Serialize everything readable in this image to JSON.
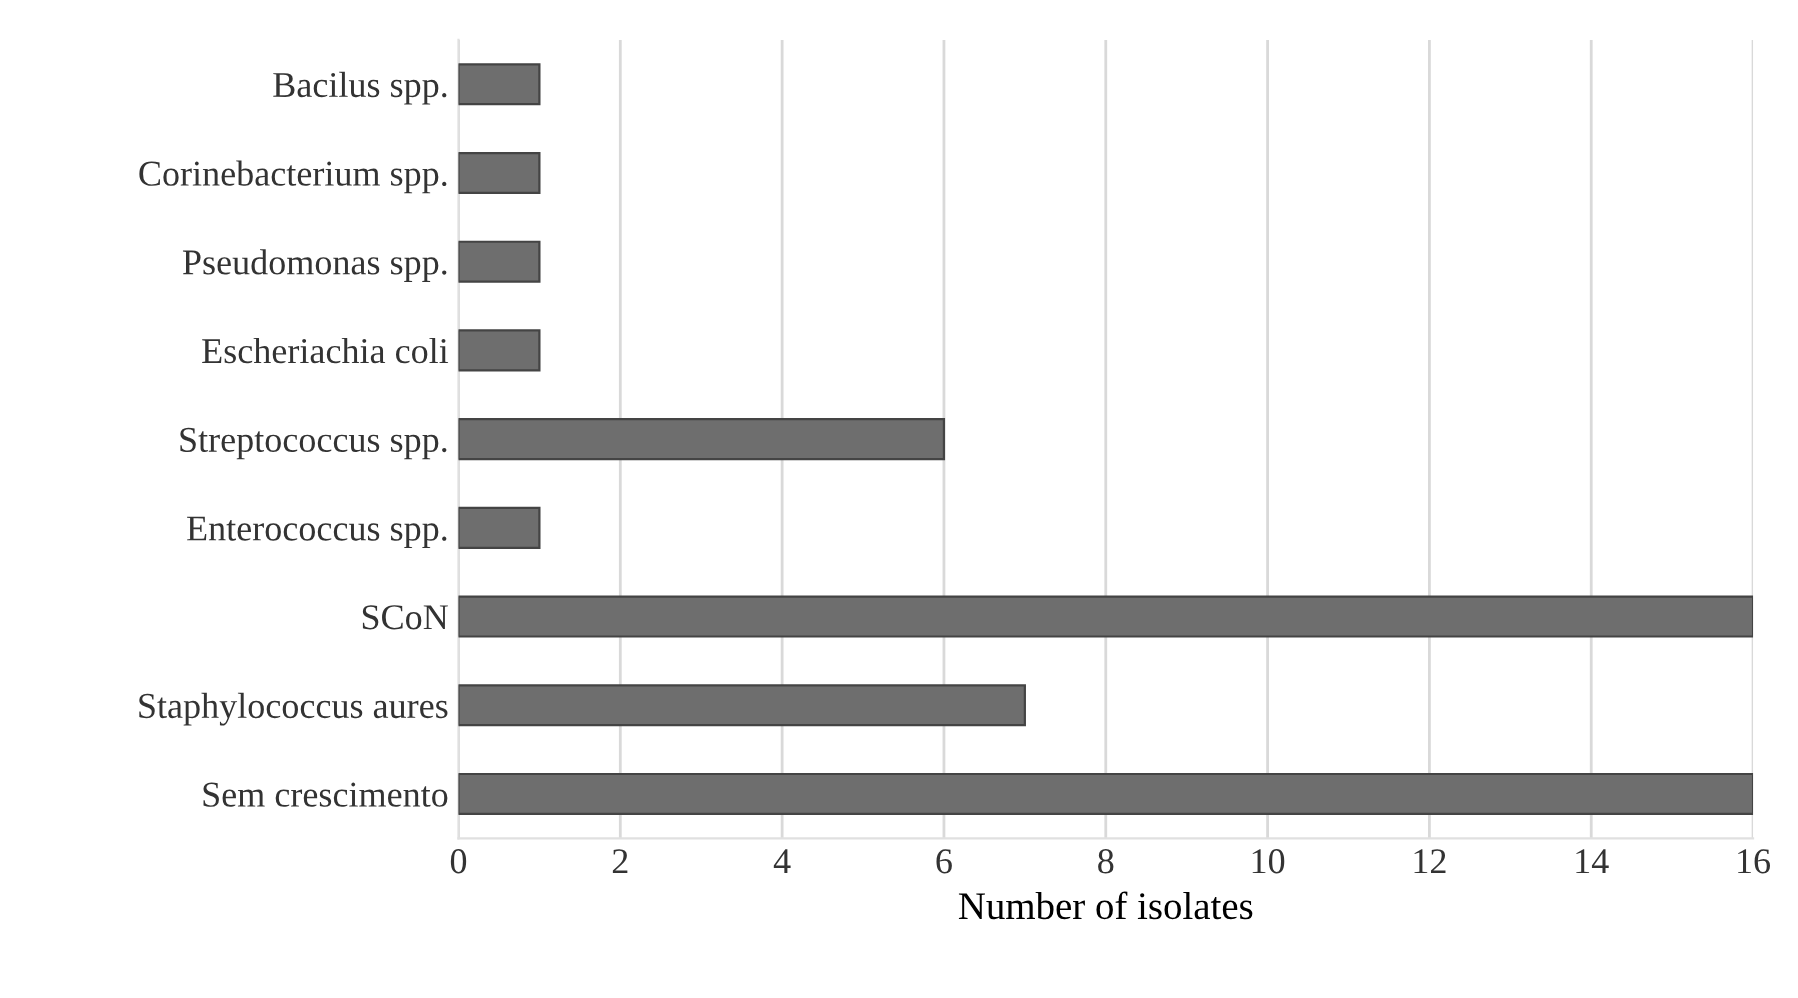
{
  "chart_data": {
    "type": "bar",
    "orientation": "horizontal",
    "categories": [
      "Bacilus spp.",
      "Corinebacterium spp.",
      "Pseudomonas spp.",
      "Escheriachia coli",
      "Streptococcus spp.",
      "Enterococcus spp.",
      "SCoN",
      "Staphylococcus aures",
      "Sem crescimento"
    ],
    "values": [
      1,
      1,
      1,
      1,
      6,
      1,
      16,
      7,
      16
    ],
    "color": "#6e6e6e",
    "xlabel": "Number of isolates",
    "xlim": [
      0,
      16
    ],
    "xticks": [
      0,
      2,
      4,
      6,
      8,
      10,
      12,
      14,
      16
    ],
    "grid": "x"
  }
}
